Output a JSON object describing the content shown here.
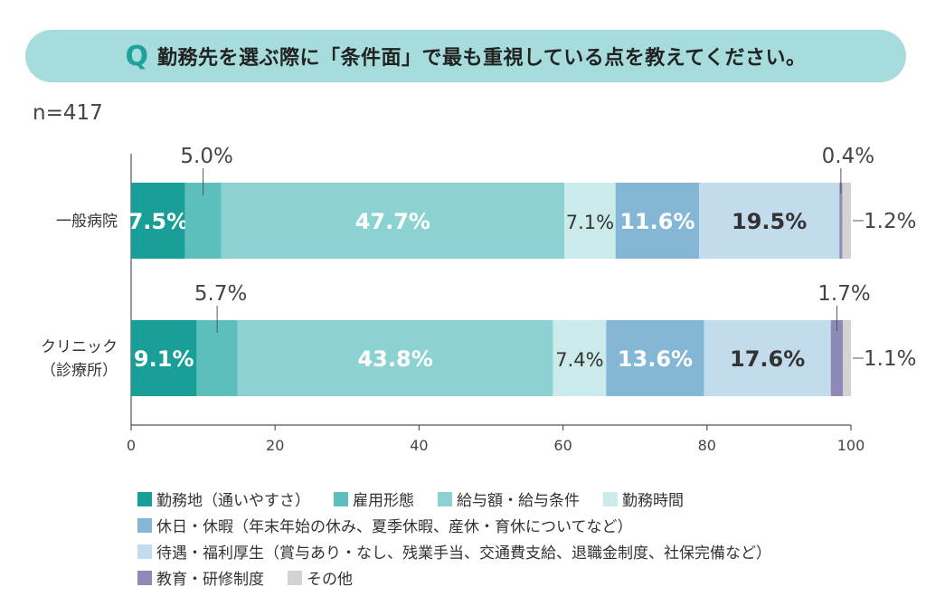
{
  "question": {
    "marker": "Q",
    "text": "勤務先を選ぶ際に「条件面」で最も重視している点を教えてください。"
  },
  "sample_size": "n=417",
  "chart_data": {
    "type": "bar",
    "orientation": "horizontal",
    "stacked": true,
    "title": "",
    "xlabel": "",
    "ylabel": "",
    "xlim": [
      0,
      100
    ],
    "x_ticks": [
      "0",
      "20",
      "40",
      "60",
      "80",
      "100"
    ],
    "categories": [
      [
        "一般病院"
      ],
      [
        "クリニック",
        "（診療所）"
      ]
    ],
    "series": [
      {
        "name": "勤務地（通いやすさ）",
        "color": "#1a9e98",
        "values": [
          7.5,
          9.1
        ],
        "labels": [
          "7.5%",
          "9.1%"
        ]
      },
      {
        "name": "雇用形態",
        "color": "#5dbfbc",
        "values": [
          5.0,
          5.7
        ],
        "labels": [
          "5.0%",
          "5.7%"
        ]
      },
      {
        "name": "給与額・給与条件",
        "color": "#8cd2d3",
        "values": [
          47.7,
          43.8
        ],
        "labels": [
          "47.7%",
          "43.8%"
        ]
      },
      {
        "name": "勤務時間",
        "color": "#cbebeb",
        "values": [
          7.1,
          7.4
        ],
        "labels": [
          "7.1%",
          "7.4%"
        ]
      },
      {
        "name": "休日・休暇（年末年始の休み、夏季休暇、産休・育休についてなど）",
        "color": "#84b6d6",
        "values": [
          11.6,
          13.6
        ],
        "labels": [
          "11.6%",
          "13.6%"
        ]
      },
      {
        "name": "待遇・福利厚生（賞与あり・なし、残業手当、交通費支給、退職金制度、社保完備など）",
        "color": "#c3dced",
        "values": [
          19.5,
          17.6
        ],
        "labels": [
          "19.5%",
          "17.6%"
        ]
      },
      {
        "name": "教育・研修制度",
        "color": "#8e8ab8",
        "values": [
          0.4,
          1.7
        ],
        "labels": [
          "0.4%",
          "1.7%"
        ]
      },
      {
        "name": "その他",
        "color": "#d3d3d3",
        "values": [
          1.2,
          1.1
        ],
        "labels": [
          "1.2%",
          "1.1%"
        ]
      }
    ],
    "legend_position": "bottom",
    "grid": false
  }
}
